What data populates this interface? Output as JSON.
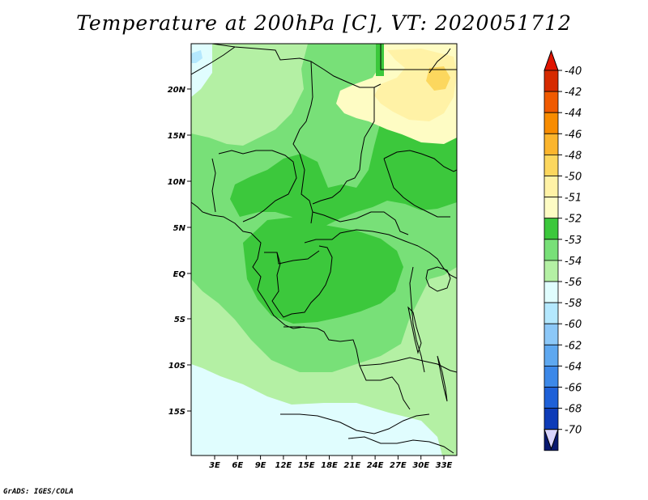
{
  "title": "Temperature at 200hPa [C], VT: 2020051712",
  "credit": "GrADS: IGES/COLA",
  "lat_labels": [
    "20N",
    "15N",
    "10N",
    "5N",
    "EQ",
    "5S",
    "10S",
    "15S"
  ],
  "lon_labels": [
    "3E",
    "6E",
    "9E",
    "12E",
    "15E",
    "18E",
    "21E",
    "24E",
    "27E",
    "30E",
    "33E"
  ],
  "colorbar": {
    "labels": [
      "-40",
      "-42",
      "-44",
      "-46",
      "-48",
      "-50",
      "-51",
      "-52",
      "-53",
      "-54",
      "-56",
      "-58",
      "-60",
      "-62",
      "-64",
      "-66",
      "-68",
      "-70"
    ],
    "colors": [
      "#d62b00",
      "#f05a00",
      "#f88c00",
      "#fbb52d",
      "#fcd75e",
      "#fff2a6",
      "#fefcc4",
      "#3cc83c",
      "#78e078",
      "#b4f0a4",
      "#e0fdfe",
      "#b4e8fe",
      "#8cc8f8",
      "#5ea8f0",
      "#3c88e8",
      "#1e60d8",
      "#0e3cb8",
      "#081870"
    ],
    "top_color": "#e01400",
    "bottom_color": "#d8d4fc"
  },
  "fill_colors": {
    "ocean_light": "#e0fdfe",
    "level_54": "#b4f0a4",
    "level_53": "#78e078",
    "level_52": "#3cc83c",
    "level_51": "#fefcc4",
    "level_50": "#fff2a6",
    "level_48": "#fcd75e",
    "water_blue": "#b4e8fe"
  }
}
